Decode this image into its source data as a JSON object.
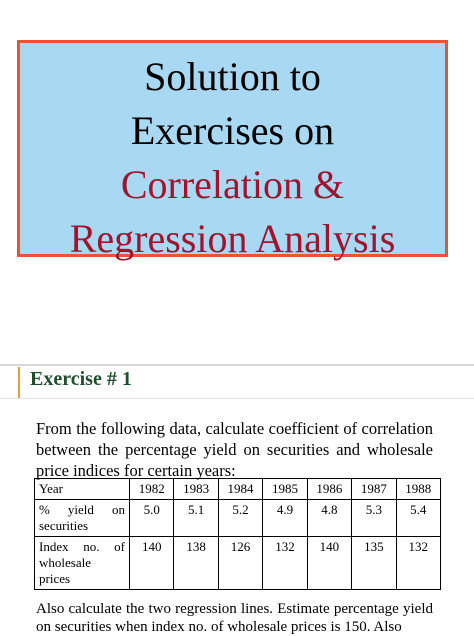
{
  "title": {
    "line1": "Solution to",
    "line2": "Exercises on",
    "line3": "Correlation &",
    "line4": "Regression Analysis"
  },
  "exercise": {
    "heading": "Exercise # 1",
    "intro": "From the following data, calculate coefficient of correlation between the percentage yield on securities and wholesale price indices for certain years:",
    "table": {
      "header_label": "Year",
      "years": [
        "1982",
        "1983",
        "1984",
        "1985",
        "1986",
        "1987",
        "1988"
      ],
      "row1_label_top": "% yield on",
      "row1_label_bottom": "securities",
      "row1_values": [
        "5.0",
        "5.1",
        "5.2",
        "4.9",
        "4.8",
        "5.3",
        "5.4"
      ],
      "row2_label_top": "Index no. of",
      "row2_label_mid": "wholesale",
      "row2_label_bottom": "prices",
      "row2_values": [
        "140",
        "138",
        "126",
        "132",
        "140",
        "135",
        "132"
      ]
    },
    "outro": "Also calculate the two regression lines. Estimate percentage yield on securities when index no. of wholesale prices is 150. Also"
  }
}
